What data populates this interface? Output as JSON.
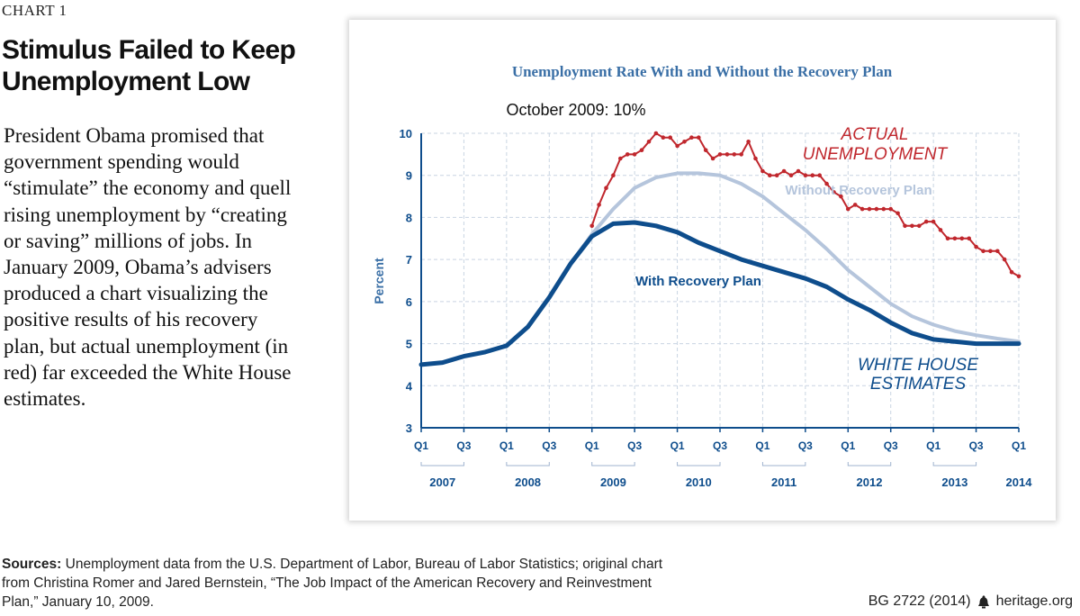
{
  "page": {
    "chart_label": "CHART 1",
    "headline": "Stimulus Failed to Keep Unemployment Low",
    "body": "President Obama promised that government spending would “stimulate” the economy and quell rising unemployment by “creating or saving” millions of jobs. In January 2009, Obama’s advisers produced a chart visualizing the positive results of his recovery plan, but actual unemployment (in red) far exceeded the White House estimates.",
    "sources_label": "Sources:",
    "sources_text": "Unemployment data from the U.S. Department of Labor, Bureau of Labor Statistics; original chart from Christina Romer and Jared Bernstein, “The Job Impact of the American Recovery and Reinvestment Plan,” January 10, 2009.",
    "report_id": "BG 2722 (2014)",
    "site": "heritage.org"
  },
  "chart_data": {
    "type": "line",
    "title": "Unemployment Rate With and Without the Recovery Plan",
    "ylabel": "Percent",
    "ylim": [
      3,
      10
    ],
    "yticks": [
      3,
      4,
      5,
      6,
      7,
      8,
      9,
      10
    ],
    "xlim": [
      2007.0,
      2014.0
    ],
    "xticks": [
      {
        "x": 2007.0,
        "label": "Q1"
      },
      {
        "x": 2007.5,
        "label": "Q3"
      },
      {
        "x": 2008.0,
        "label": "Q1"
      },
      {
        "x": 2008.5,
        "label": "Q3"
      },
      {
        "x": 2009.0,
        "label": "Q1"
      },
      {
        "x": 2009.5,
        "label": "Q3"
      },
      {
        "x": 2010.0,
        "label": "Q1"
      },
      {
        "x": 2010.5,
        "label": "Q3"
      },
      {
        "x": 2011.0,
        "label": "Q1"
      },
      {
        "x": 2011.5,
        "label": "Q3"
      },
      {
        "x": 2012.0,
        "label": "Q1"
      },
      {
        "x": 2012.5,
        "label": "Q3"
      },
      {
        "x": 2013.0,
        "label": "Q1"
      },
      {
        "x": 2013.5,
        "label": "Q3"
      },
      {
        "x": 2014.0,
        "label": "Q1"
      }
    ],
    "years": [
      {
        "label": "2007",
        "start": 2007.0,
        "end": 2007.5
      },
      {
        "label": "2008",
        "start": 2008.0,
        "end": 2008.5
      },
      {
        "label": "2009",
        "start": 2009.0,
        "end": 2009.5
      },
      {
        "label": "2010",
        "start": 2010.0,
        "end": 2010.5
      },
      {
        "label": "2011",
        "start": 2011.0,
        "end": 2011.5
      },
      {
        "label": "2012",
        "start": 2012.0,
        "end": 2012.5
      },
      {
        "label": "2013",
        "start": 2013.0,
        "end": 2013.5
      },
      {
        "label": "2014",
        "start": 2014.0,
        "end": 2014.0
      }
    ],
    "grid": true,
    "series": [
      {
        "name": "Without Recovery Plan",
        "color": "#b5c5dc",
        "x": [
          2007.0,
          2007.25,
          2007.5,
          2007.75,
          2008.0,
          2008.25,
          2008.5,
          2008.75,
          2009.0,
          2009.25,
          2009.5,
          2009.75,
          2010.0,
          2010.25,
          2010.5,
          2010.75,
          2011.0,
          2011.25,
          2011.5,
          2011.75,
          2012.0,
          2012.25,
          2012.5,
          2012.75,
          2013.0,
          2013.25,
          2013.5,
          2013.75,
          2014.0
        ],
        "values": [
          4.5,
          4.55,
          4.7,
          4.8,
          4.95,
          5.4,
          6.1,
          6.9,
          7.6,
          8.2,
          8.7,
          8.95,
          9.05,
          9.05,
          9.0,
          8.8,
          8.5,
          8.1,
          7.7,
          7.25,
          6.75,
          6.35,
          5.95,
          5.65,
          5.45,
          5.3,
          5.2,
          5.12,
          5.05
        ]
      },
      {
        "name": "With Recovery Plan",
        "color": "#0e4d8c",
        "x": [
          2007.0,
          2007.25,
          2007.5,
          2007.75,
          2008.0,
          2008.25,
          2008.5,
          2008.75,
          2009.0,
          2009.25,
          2009.5,
          2009.75,
          2010.0,
          2010.25,
          2010.5,
          2010.75,
          2011.0,
          2011.25,
          2011.5,
          2011.75,
          2012.0,
          2012.25,
          2012.5,
          2012.75,
          2013.0,
          2013.25,
          2013.5,
          2013.75,
          2014.0
        ],
        "values": [
          4.5,
          4.55,
          4.7,
          4.8,
          4.95,
          5.4,
          6.1,
          6.9,
          7.55,
          7.85,
          7.88,
          7.8,
          7.65,
          7.4,
          7.2,
          7.0,
          6.85,
          6.7,
          6.55,
          6.35,
          6.05,
          5.8,
          5.5,
          5.25,
          5.1,
          5.05,
          5.0,
          5.0,
          5.0
        ]
      },
      {
        "name": "ACTUAL UNEMPLOYMENT",
        "color": "#c0272d",
        "x": [
          2009.0,
          2009.0833,
          2009.1667,
          2009.25,
          2009.3333,
          2009.4167,
          2009.5,
          2009.5833,
          2009.6667,
          2009.75,
          2009.8333,
          2009.9167,
          2010.0,
          2010.0833,
          2010.1667,
          2010.25,
          2010.3333,
          2010.4167,
          2010.5,
          2010.5833,
          2010.6667,
          2010.75,
          2010.8333,
          2010.9167,
          2011.0,
          2011.0833,
          2011.1667,
          2011.25,
          2011.3333,
          2011.4167,
          2011.5,
          2011.5833,
          2011.6667,
          2011.75,
          2011.8333,
          2011.9167,
          2012.0,
          2012.0833,
          2012.1667,
          2012.25,
          2012.3333,
          2012.4167,
          2012.5,
          2012.5833,
          2012.6667,
          2012.75,
          2012.8333,
          2012.9167,
          2013.0,
          2013.0833,
          2013.1667,
          2013.25,
          2013.3333,
          2013.4167,
          2013.5,
          2013.5833,
          2013.6667,
          2013.75,
          2013.8333,
          2013.9167,
          2014.0
        ],
        "values": [
          7.8,
          8.3,
          8.7,
          9.0,
          9.4,
          9.5,
          9.5,
          9.6,
          9.8,
          10.0,
          9.9,
          9.9,
          9.7,
          9.8,
          9.9,
          9.9,
          9.6,
          9.4,
          9.5,
          9.5,
          9.5,
          9.5,
          9.8,
          9.4,
          9.1,
          9.0,
          9.0,
          9.1,
          9.0,
          9.1,
          9.0,
          9.0,
          9.0,
          8.8,
          8.6,
          8.5,
          8.2,
          8.3,
          8.2,
          8.2,
          8.2,
          8.2,
          8.2,
          8.1,
          7.8,
          7.8,
          7.8,
          7.9,
          7.9,
          7.7,
          7.5,
          7.5,
          7.5,
          7.5,
          7.3,
          7.2,
          7.2,
          7.2,
          7.0,
          6.7,
          6.6
        ]
      }
    ],
    "annotations": [
      {
        "text": "October 2009: 10%",
        "x": 2009.75,
        "y": 10.0,
        "color": "#111111"
      },
      {
        "text": "ACTUAL",
        "color": "#c0272d"
      },
      {
        "text": "UNEMPLOYMENT",
        "color": "#c0272d"
      },
      {
        "text": "Without Recovery Plan",
        "color": "#b5c5dc"
      },
      {
        "text": "With Recovery Plan",
        "color": "#0e4d8c"
      },
      {
        "text": "WHITE HOUSE",
        "color": "#0e4d8c"
      },
      {
        "text": "ESTIMATES",
        "color": "#0e4d8c"
      }
    ]
  }
}
